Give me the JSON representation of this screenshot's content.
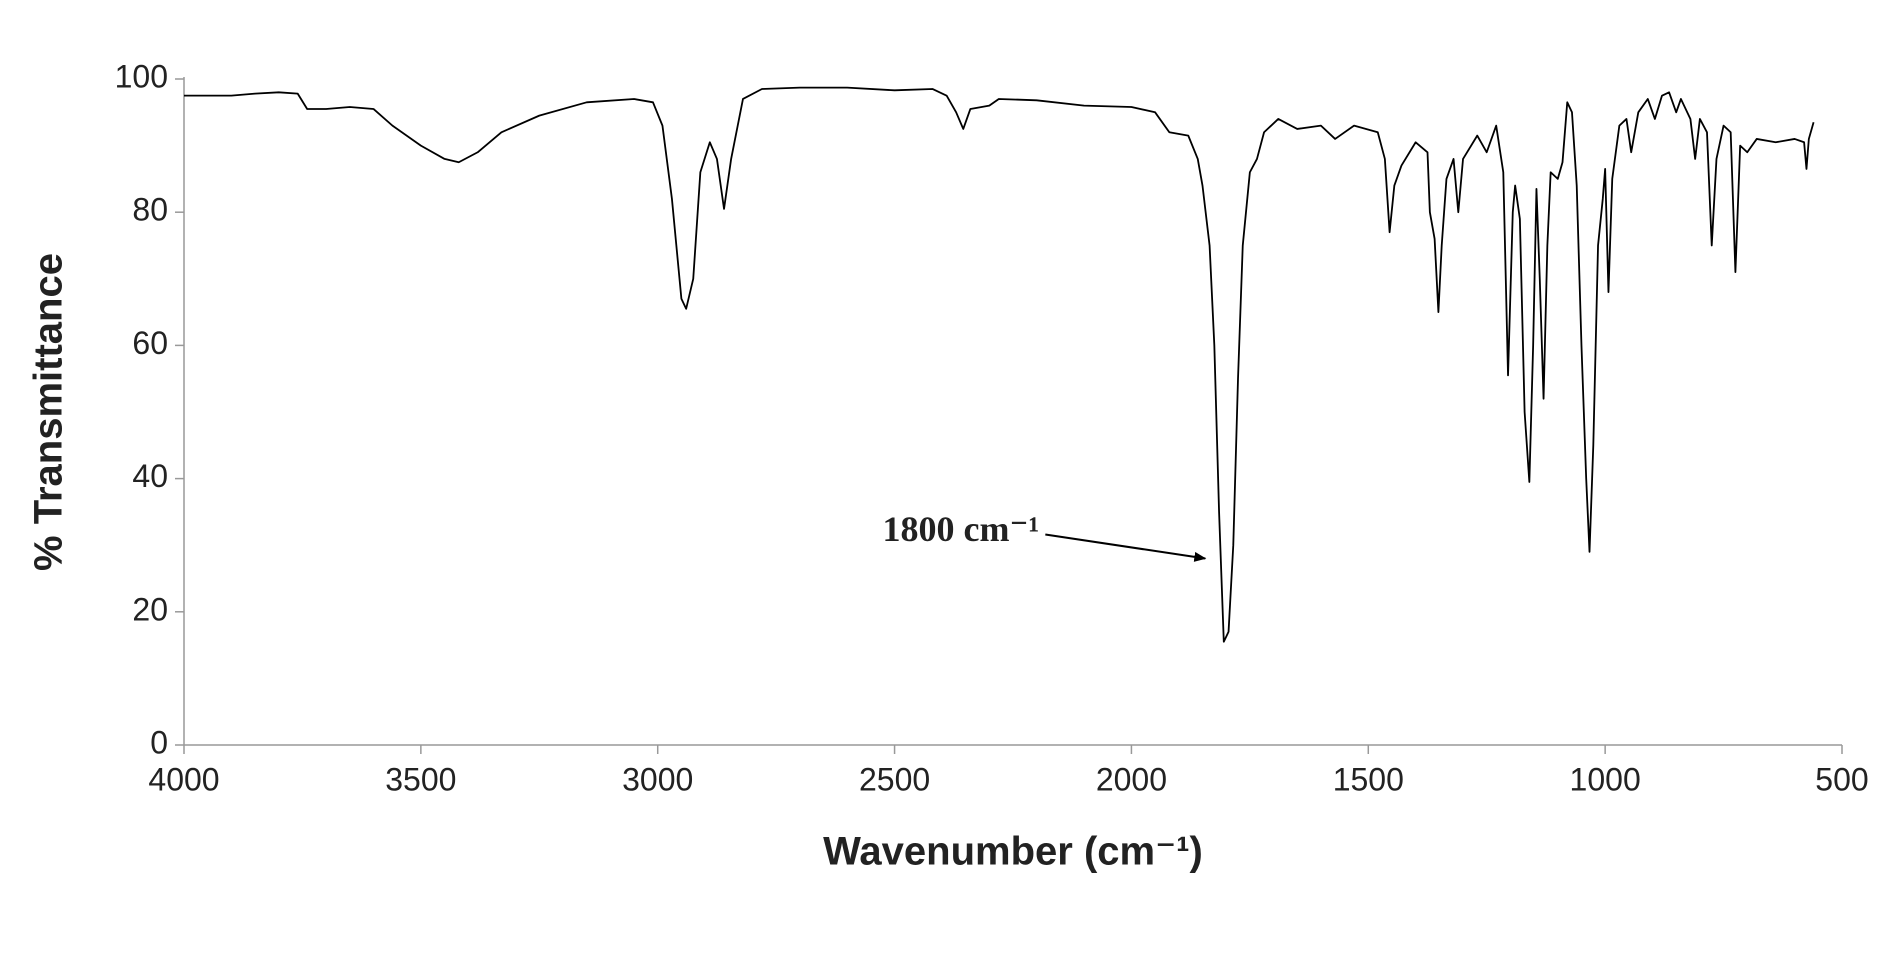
{
  "chart_data": {
    "type": "line",
    "xlabel": "Wavenumber (cm⁻¹)",
    "ylabel": "% Transmittance",
    "annotation": {
      "text": "1800 cm⁻¹",
      "point": [
        1844,
        28
      ]
    },
    "color": "#000000",
    "xlim": [
      4000,
      500
    ],
    "xticks": [
      4000,
      3500,
      3000,
      2500,
      2000,
      1500,
      1000,
      500
    ],
    "ylim": [
      0,
      100
    ],
    "yticks": [
      0,
      20,
      40,
      60,
      80,
      100
    ],
    "grid": false,
    "x": [
      4000,
      3900,
      3850,
      3800,
      3760,
      3740,
      3700,
      3650,
      3600,
      3560,
      3500,
      3450,
      3420,
      3380,
      3330,
      3250,
      3150,
      3050,
      3010,
      2990,
      2970,
      2950,
      2940,
      2925,
      2910,
      2890,
      2875,
      2860,
      2845,
      2820,
      2780,
      2700,
      2600,
      2500,
      2420,
      2390,
      2370,
      2355,
      2340,
      2300,
      2280,
      2200,
      2100,
      2000,
      1950,
      1920,
      1880,
      1860,
      1850,
      1835,
      1825,
      1815,
      1805,
      1795,
      1785,
      1775,
      1765,
      1750,
      1735,
      1720,
      1690,
      1650,
      1600,
      1570,
      1530,
      1480,
      1465,
      1455,
      1445,
      1430,
      1400,
      1375,
      1370,
      1360,
      1352,
      1345,
      1335,
      1320,
      1310,
      1300,
      1270,
      1250,
      1230,
      1215,
      1205,
      1195,
      1190,
      1180,
      1170,
      1160,
      1152,
      1145,
      1138,
      1130,
      1122,
      1115,
      1100,
      1090,
      1080,
      1070,
      1060,
      1050,
      1040,
      1033,
      1025,
      1015,
      1005,
      1000,
      993,
      985,
      970,
      955,
      945,
      930,
      910,
      895,
      880,
      865,
      850,
      840,
      820,
      810,
      800,
      785,
      775,
      765,
      750,
      735,
      725,
      715,
      700,
      680,
      640,
      600,
      580,
      575,
      570,
      560
    ],
    "values": [
      97.5,
      97.5,
      97.8,
      98,
      97.8,
      95.5,
      95.5,
      95.8,
      95.5,
      93,
      90,
      88,
      87.5,
      89,
      92,
      94.5,
      96.5,
      97,
      96.5,
      93,
      82,
      67,
      65.5,
      70,
      86,
      90.5,
      88,
      80.5,
      88,
      97,
      98.5,
      98.7,
      98.7,
      98.3,
      98.5,
      97.5,
      95,
      92.5,
      95.5,
      96,
      97,
      96.8,
      96,
      95.8,
      95,
      92,
      91.5,
      88,
      84,
      75,
      60,
      35,
      15.5,
      17,
      30,
      55,
      75,
      86,
      88,
      92,
      94,
      92.5,
      93,
      91,
      93,
      92,
      88,
      77,
      84,
      87,
      90.5,
      89,
      80,
      76,
      65,
      75,
      85,
      88,
      80,
      88,
      91.5,
      89,
      93,
      86,
      55.5,
      80,
      84,
      79,
      50,
      39.5,
      60,
      83.5,
      70,
      52,
      75,
      86,
      85,
      87.5,
      96.5,
      95,
      84,
      60,
      40,
      29,
      45,
      75,
      82,
      86.5,
      68,
      85,
      93,
      94,
      89,
      95,
      97,
      94,
      97.5,
      98,
      95,
      97,
      94,
      88,
      94,
      92,
      75,
      88,
      93,
      92,
      71,
      90,
      89,
      91,
      90.5,
      91,
      90.5,
      86.5,
      91,
      93.5
    ]
  }
}
